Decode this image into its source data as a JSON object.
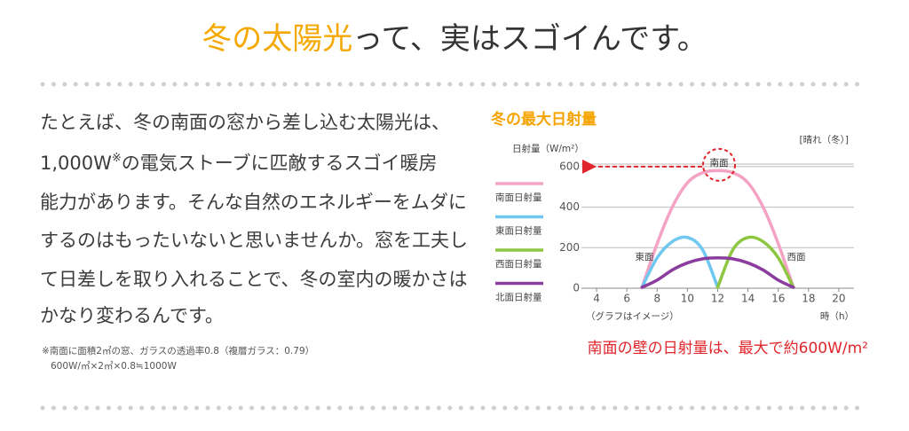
{
  "header": {
    "title_highlight": "冬の太陽光",
    "title_rest": "って、実はスゴイんです。"
  },
  "body": {
    "lines": [
      "たとえば、冬の南面の窓から差し込む太陽光は、",
      {
        "text": "1,000W",
        "sup": "※",
        "rest": "の電気ストーブに匹敵するスゴイ暖房"
      },
      "能力があります。そんな自然のエネルギーをムダに",
      "するのはもったいないと思いませんか。窓を工夫し",
      "て日差しを取り入れることで、冬の室内の暖かさは",
      "かなり変わるんです。"
    ],
    "note": [
      "※南面に面積2㎡の窓、ガラスの透過率0.8（複層ガラス：0.79）",
      "600W/㎡×2㎡×0.8≒1000W"
    ]
  },
  "chart_data": {
    "type": "line",
    "title": "冬の最大日射量",
    "y_label": "日射量（W/m²）",
    "condition": "[晴れ（冬）]",
    "x_label": "時（h）",
    "note": "（グラフはイメージ）",
    "annotations": {
      "south": "南面",
      "east": "東面",
      "west": "西面"
    },
    "caption": "南面の壁の日射量は、最大で約600W/m²",
    "x": [
      7,
      8,
      9,
      10,
      11,
      12,
      13,
      14,
      15,
      16,
      17
    ],
    "series": [
      {
        "name": "南面日射量",
        "color": "#f4a3c4",
        "values": [
          0,
          220,
          400,
          520,
          570,
          580,
          570,
          520,
          400,
          220,
          0
        ]
      },
      {
        "name": "東面日射量",
        "color": "#6ec8ef",
        "values": [
          0,
          150,
          230,
          250,
          190,
          0,
          null,
          null,
          null,
          null,
          null
        ]
      },
      {
        "name": "西面日射量",
        "color": "#8dc641",
        "values": [
          null,
          null,
          null,
          null,
          null,
          0,
          190,
          250,
          230,
          150,
          0
        ]
      },
      {
        "name": "北面日射量",
        "color": "#8b3d9e",
        "values": [
          0,
          40,
          90,
          125,
          145,
          150,
          145,
          125,
          90,
          40,
          0
        ]
      }
    ],
    "highlight_value": 600,
    "xlim": [
      3,
      21
    ],
    "ylim": [
      0,
      700
    ],
    "xticks": [
      4,
      6,
      8,
      10,
      12,
      14,
      16,
      18,
      20
    ],
    "yticks": [
      0,
      200,
      400,
      600
    ],
    "grid": true
  }
}
